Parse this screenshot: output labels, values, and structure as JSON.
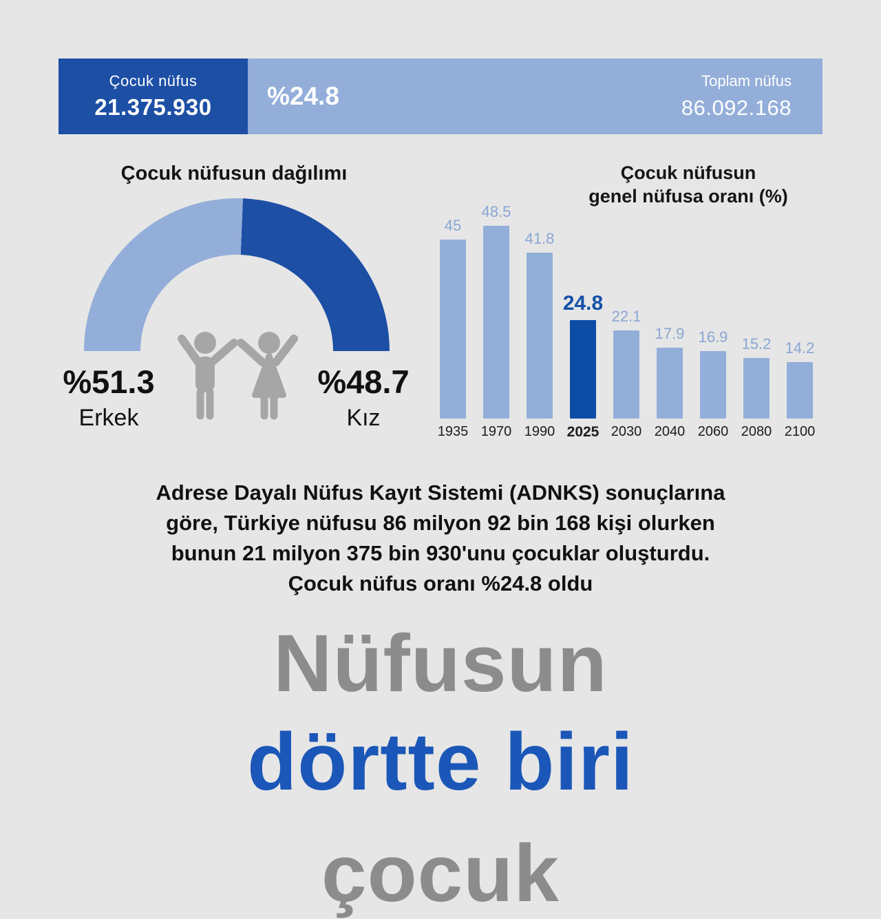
{
  "colors": {
    "background": "#e6e6e6",
    "dark_blue": "#1d4fa5",
    "light_blue": "#93aed9",
    "bar_highlight": "#0e4da6",
    "headline_gray": "#8c8c8c",
    "headline_blue": "#1b57b8",
    "icon_gray": "#a6a6a6"
  },
  "header": {
    "child_label": "Çocuk nüfus",
    "child_value": "21.375.930",
    "percent_value": "%24.8",
    "total_label": "Toplam nüfus",
    "total_value": "86.092.168"
  },
  "gauge_labels": {
    "left_percent": "%51.3",
    "left_label": "Erkek",
    "right_percent": "%48.7",
    "right_label": "Kız"
  },
  "chart_data": [
    {
      "type": "pie",
      "shape": "semicircle-donut",
      "title": "Çocuk nüfusun dağılımı",
      "title_regular": "Çocuk nüfusun ",
      "title_bold": "dağılımı",
      "segments": [
        {
          "label": "Erkek",
          "value": 51.3,
          "color": "#93aed9"
        },
        {
          "label": "Kız",
          "value": 48.7,
          "color": "#1d4fa5"
        }
      ]
    },
    {
      "type": "bar",
      "title": "Çocuk nüfusun genel nüfusa oranı (%)",
      "title_lines": [
        "Çocuk nüfusun",
        "genel nüfusa oranı (%)"
      ],
      "categories": [
        "1935",
        "1970",
        "1990",
        "2025",
        "2030",
        "2040",
        "2060",
        "2080",
        "2100"
      ],
      "values": [
        45,
        48.5,
        41.8,
        24.8,
        22.1,
        17.9,
        16.9,
        15.2,
        14.2
      ],
      "highlight_index": 3,
      "ylim": [
        0,
        50
      ],
      "grid": false,
      "legend": "none",
      "bar_color": "#93aed9",
      "highlight_color": "#0e4da6"
    }
  ],
  "paragraph": {
    "lines": [
      "Adrese Dayalı Nüfus Kayıt Sistemi (ADNKS) sonuçlarına",
      "göre, Türkiye nüfusu 86 milyon 92 bin 168 kişi olurken",
      "bunun 21 milyon 375 bin 930'unu çocuklar oluşturdu.",
      "Çocuk nüfus oranı %24.8 oldu"
    ]
  },
  "headline": {
    "line1": "Nüfusun",
    "line2": "dörtte biri",
    "line3": "çocuk"
  }
}
